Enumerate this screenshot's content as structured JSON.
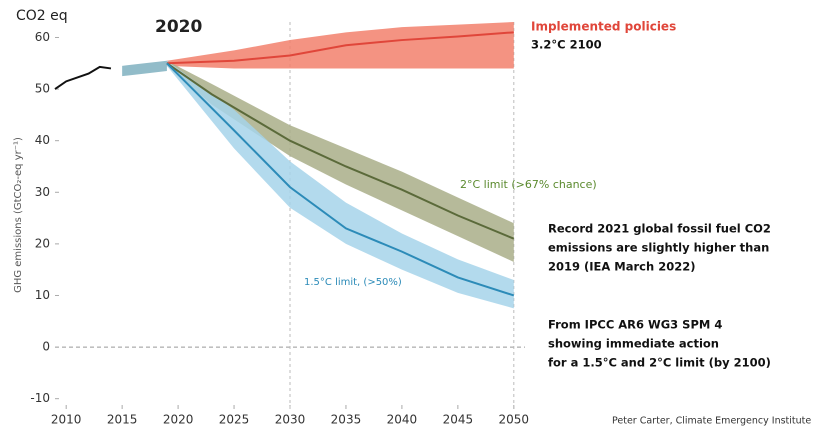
{
  "chart_data": {
    "type": "line",
    "title": "2020",
    "unit_label": "CO2 eq",
    "y_label": "GHG emissions (GtCO₂-eq yr⁻¹)",
    "xlim": [
      2009,
      2051
    ],
    "ylim": [
      -12,
      63
    ],
    "xticks": [
      2010,
      2015,
      2020,
      2025,
      2030,
      2035,
      2040,
      2045,
      2050
    ],
    "yticks": [
      -10,
      0,
      10,
      20,
      30,
      40,
      50,
      60
    ],
    "reference_lines": [
      2030,
      2050
    ],
    "bands": [
      {
        "color": "#f2806c",
        "x": [
          2019,
          2025,
          2030,
          2035,
          2040,
          2045,
          2050
        ],
        "low": [
          54.5,
          54,
          54,
          54,
          54,
          54,
          54
        ],
        "high": [
          55.5,
          57.5,
          59.5,
          61,
          62,
          62.5,
          63
        ]
      },
      {
        "color": "#a9ae88",
        "x": [
          2019,
          2023,
          2030,
          2035,
          2040,
          2045,
          2050
        ],
        "low": [
          54.5,
          47,
          37,
          31.5,
          26.5,
          21.5,
          16.5
        ],
        "high": [
          55.5,
          51,
          43,
          38.5,
          34,
          29,
          24
        ]
      },
      {
        "color": "#a6d4ea",
        "x": [
          2019,
          2025,
          2030,
          2035,
          2040,
          2045,
          2050
        ],
        "low": [
          54.5,
          38.5,
          27,
          20,
          15,
          10.5,
          7.5
        ],
        "high": [
          55.5,
          46,
          36,
          28,
          22,
          17,
          13
        ]
      },
      {
        "color": "#7fb0c0",
        "x": [
          2015,
          2017,
          2019
        ],
        "low": [
          52.5,
          53,
          53.5
        ],
        "high": [
          54.5,
          55,
          55.5
        ]
      }
    ],
    "series": [
      {
        "name": "Implemented policies",
        "color": "#e0463a",
        "x": [
          2019,
          2025,
          2030,
          2035,
          2040,
          2045,
          2050
        ],
        "values": [
          55,
          55.5,
          56.5,
          58.5,
          59.5,
          60.2,
          61
        ]
      },
      {
        "name": "2°C limit (>67% chance)",
        "color": "#5b6a3a",
        "x": [
          2019,
          2023,
          2030,
          2035,
          2040,
          2045,
          2050
        ],
        "values": [
          55,
          49,
          40,
          35,
          30.5,
          25.5,
          21
        ]
      },
      {
        "name": "1.5°C limit, (>50%)",
        "color": "#2c8bb8",
        "x": [
          2019,
          2025,
          2030,
          2035,
          2040,
          2045,
          2050
        ],
        "values": [
          55,
          42,
          31,
          23,
          18.5,
          13.5,
          10
        ]
      },
      {
        "color": "#111111",
        "x": [
          2009,
          2010,
          2012,
          2013,
          2014
        ],
        "values": [
          50,
          51.5,
          53,
          54.3,
          54
        ]
      }
    ],
    "annotations": {
      "implemented": "3.2°C 2100",
      "record": [
        "Record 2021 global fossil fuel CO2",
        "emissions are slightly higher than",
        "2019 (IEA March 2022)"
      ],
      "source": [
        "From IPCC AR6 WG3 SPM 4",
        "showing immediate action",
        "for a 1.5°C and 2°C limit (by 2100)"
      ],
      "credit": "Peter Carter, Climate Emergency Institute"
    }
  }
}
